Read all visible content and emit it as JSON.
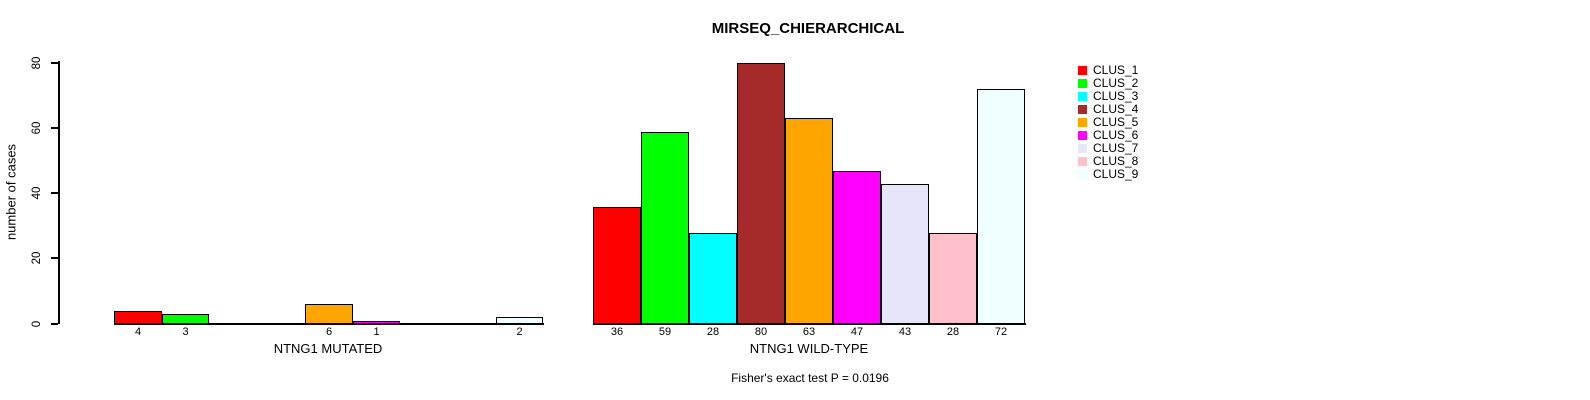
{
  "chart_data": {
    "type": "grouped_bar",
    "title": "MIRSEQ_CHIERARCHICAL",
    "ylabel": "number of cases",
    "yticks": [
      0,
      20,
      40,
      60,
      80
    ],
    "ylim": [
      0,
      80
    ],
    "grid": false,
    "footnote": "Fisher's exact test P = 0.0196",
    "legend": {
      "position": "right",
      "entries": [
        {
          "label": "CLUS_1",
          "color": "#FF0000"
        },
        {
          "label": "CLUS_2",
          "color": "#00FF00"
        },
        {
          "label": "CLUS_3",
          "color": "#00FFFF"
        },
        {
          "label": "CLUS_4",
          "color": "#A52A2A"
        },
        {
          "label": "CLUS_5",
          "color": "#FFA500"
        },
        {
          "label": "CLUS_6",
          "color": "#FF00FF"
        },
        {
          "label": "CLUS_7",
          "color": "#E6E6FA"
        },
        {
          "label": "CLUS_8",
          "color": "#FFC0CB"
        },
        {
          "label": "CLUS_9",
          "color": "#F0FFFF"
        }
      ]
    },
    "groups": [
      {
        "label": "NTNG1 MUTATED",
        "values": [
          4,
          3,
          0,
          0,
          6,
          1,
          0,
          0,
          2
        ]
      },
      {
        "label": "NTNG1 WILD-TYPE",
        "values": [
          36,
          59,
          28,
          80,
          63,
          47,
          43,
          28,
          72
        ]
      }
    ],
    "axis_color": "#000000",
    "bar_border_color": "#000000",
    "background_color": "#FFFFFF"
  }
}
